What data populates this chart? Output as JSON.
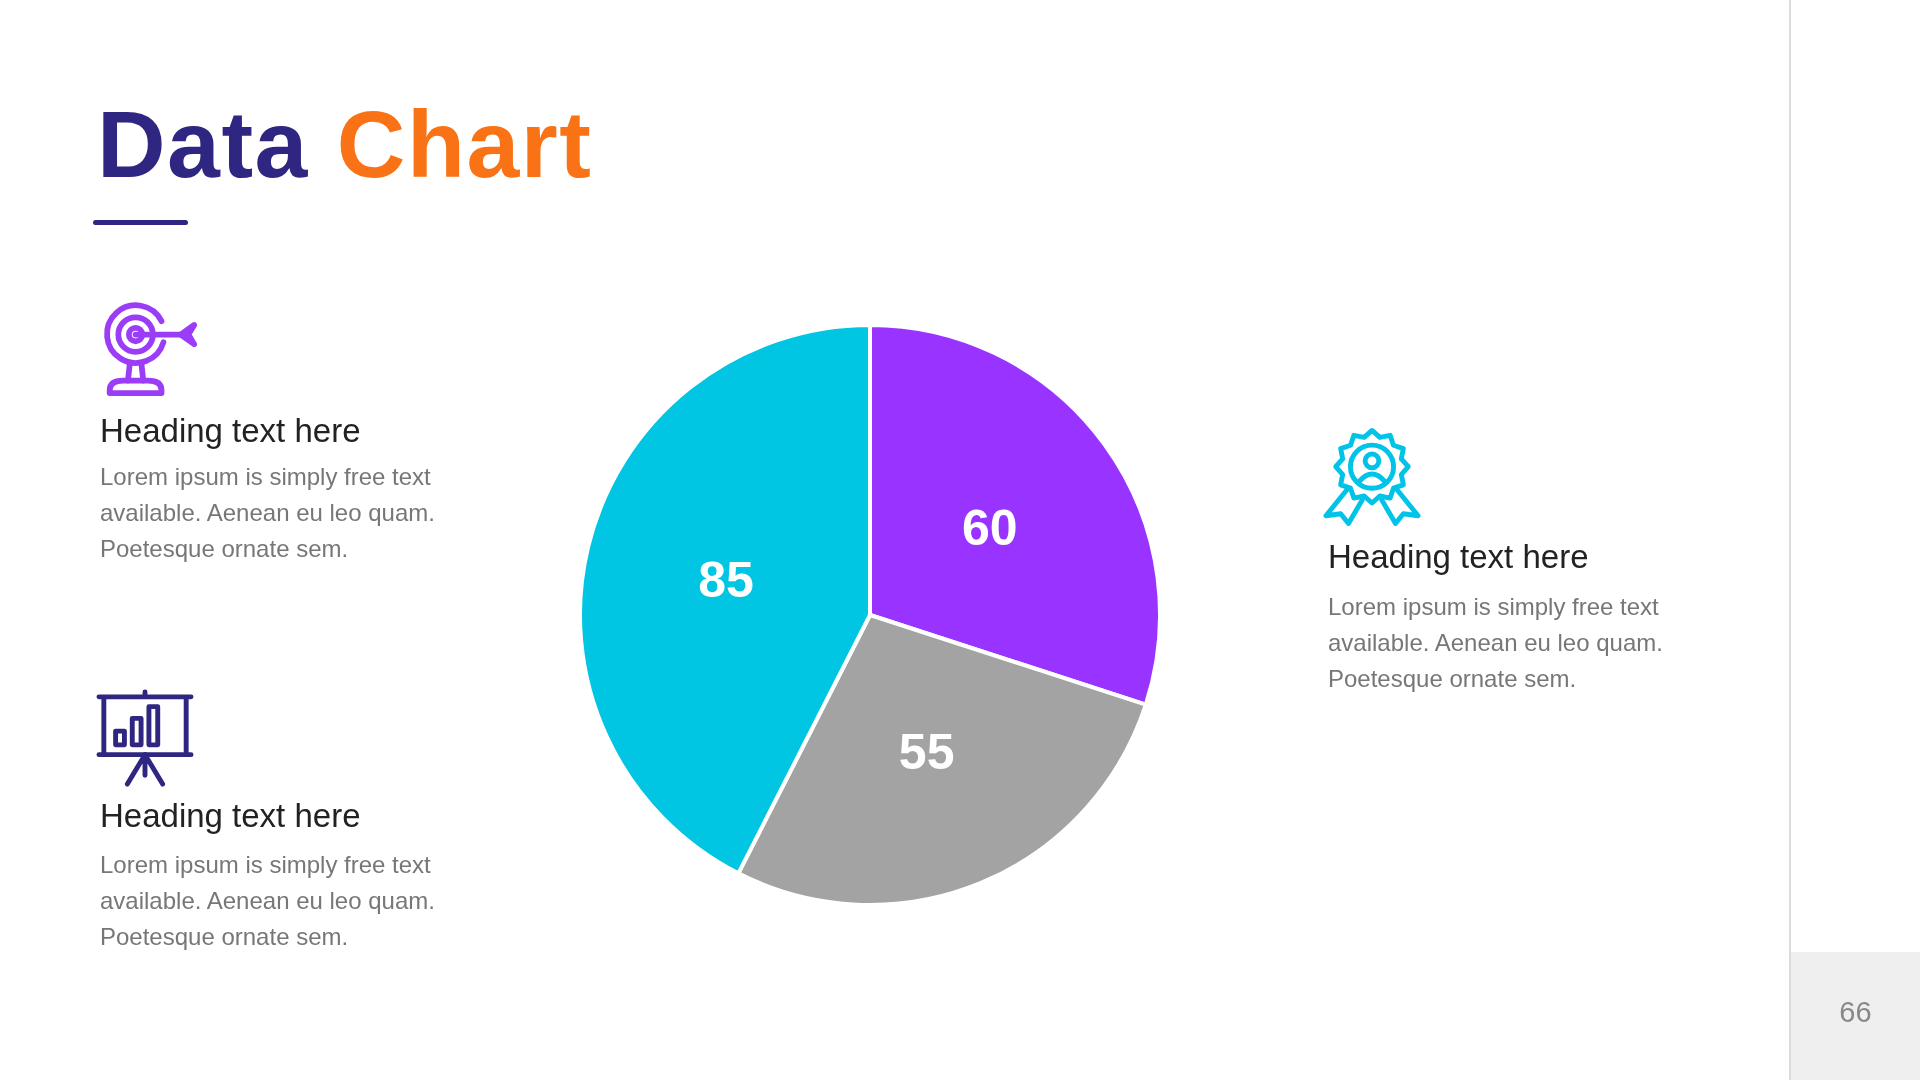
{
  "chart_data": {
    "type": "pie",
    "title": "Data Chart",
    "categories": [
      null,
      null,
      null
    ],
    "values": [
      60,
      55,
      85
    ],
    "colors": [
      "#9933ff",
      "#a3a3a3",
      "#00c5e3"
    ],
    "data_labels": true,
    "annotations": [
      "Heading text here",
      "Lorem ipsum is simply free text available. Aenean eu leo quam. Poetesque ornate sem.",
      "Heading text here",
      "Lorem ipsum is simply free text available. Aenean eu leo quam. Poetesque ornate sem.",
      "Heading text here",
      "Lorem ipsum is simply free text available. Aenean eu leo quam. Poetesque ornate sem.",
      "66"
    ]
  }
}
